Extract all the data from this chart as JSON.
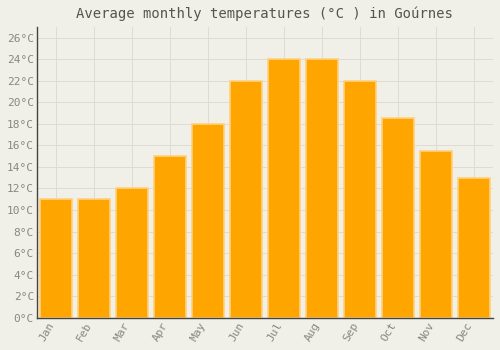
{
  "title": "Average monthly temperatures (°C ) in Goúrnes",
  "months": [
    "Jan",
    "Feb",
    "Mar",
    "Apr",
    "May",
    "Jun",
    "Jul",
    "Aug",
    "Sep",
    "Oct",
    "Nov",
    "Dec"
  ],
  "values": [
    11,
    11,
    12,
    15,
    18,
    22,
    24,
    24,
    22,
    18.5,
    15.5,
    13
  ],
  "bar_color": "#FFA500",
  "bar_edge_color": "#FFD080",
  "background_color": "#F0EFE8",
  "plot_bg_color": "#F0EFE8",
  "grid_color": "#DCDCD4",
  "text_color": "#888880",
  "title_color": "#555550",
  "spine_color": "#444440",
  "ylim": [
    0,
    27
  ],
  "yticks": [
    0,
    2,
    4,
    6,
    8,
    10,
    12,
    14,
    16,
    18,
    20,
    22,
    24,
    26
  ],
  "ytick_labels": [
    "0°C",
    "2°C",
    "4°C",
    "6°C",
    "8°C",
    "10°C",
    "12°C",
    "14°C",
    "16°C",
    "18°C",
    "20°C",
    "22°C",
    "24°C",
    "26°C"
  ],
  "title_fontsize": 10,
  "tick_fontsize": 8,
  "font_family": "monospace",
  "bar_width": 0.85
}
